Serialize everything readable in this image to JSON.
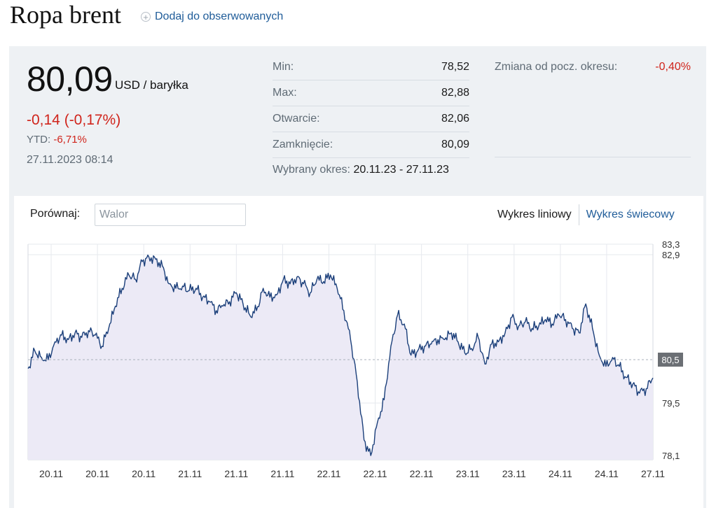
{
  "header": {
    "title": "Ropa brent",
    "watch_label": "Dodaj do obserwowanych"
  },
  "quote": {
    "price": "80,09",
    "unit": "USD / baryłka",
    "change": "-0,14 (-0,17%)",
    "ytd_label": "YTD:",
    "ytd_value": "-6,71%",
    "datetime": "27.11.2023 08:14"
  },
  "stats": {
    "rows": [
      {
        "label": "Min:",
        "value": "78,52"
      },
      {
        "label": "Max:",
        "value": "82,88"
      },
      {
        "label": "Otwarcie:",
        "value": "82,06"
      },
      {
        "label": "Zamknięcie:",
        "value": "80,09"
      }
    ],
    "period_change_label": "Zmiana od pocz. okresu:",
    "period_change_value": "-0,40%",
    "period_label": "Wybrany okres:",
    "period_value": "20.11.23 - 27.11.23"
  },
  "compare": {
    "label": "Porównaj:",
    "placeholder": "Walor"
  },
  "chart_tabs": {
    "line": "Wykres liniowy",
    "candle": "Wykres świecowy"
  },
  "colors": {
    "line": "#1b3f7a",
    "fill": "#eceaf6",
    "negative": "#d0241b",
    "link": "#1f5c99"
  },
  "chart_data": {
    "type": "area",
    "y_ticks": [
      83.3,
      82.9,
      79.5,
      78.1
    ],
    "y_tick_labels": [
      "83,3",
      "82,9",
      "79,5",
      "78,1"
    ],
    "ylim": [
      78.1,
      83.3
    ],
    "reference_value": 80.5,
    "reference_label": "80,5",
    "x_tick_labels": [
      "20.11",
      "20.11",
      "20.11",
      "21.11",
      "21.11",
      "21.11",
      "22.11",
      "22.11",
      "22.11",
      "23.11",
      "23.11",
      "24.11",
      "24.11",
      "27.11"
    ],
    "grid": true,
    "values": [
      80.3,
      80.7,
      80.55,
      80.5,
      80.9,
      81.05,
      80.95,
      81.1,
      81.0,
      81.15,
      81.05,
      80.8,
      81.2,
      81.7,
      82.1,
      82.4,
      82.3,
      82.7,
      82.8,
      82.75,
      82.6,
      82.2,
      82.1,
      82.15,
      82.05,
      82.1,
      81.9,
      81.8,
      81.6,
      81.7,
      81.8,
      82.0,
      81.75,
      81.5,
      81.6,
      82.1,
      81.9,
      81.95,
      82.3,
      82.2,
      82.35,
      82.2,
      82.0,
      82.3,
      82.25,
      82.4,
      82.1,
      81.6,
      80.95,
      80.0,
      78.7,
      78.35,
      79.1,
      79.6,
      80.8,
      81.5,
      81.3,
      80.6,
      80.7,
      80.8,
      80.85,
      80.95,
      80.95,
      81.1,
      80.9,
      80.65,
      80.75,
      81.0,
      80.4,
      80.85,
      80.9,
      81.1,
      81.45,
      81.25,
      81.35,
      81.2,
      81.25,
      81.4,
      81.3,
      81.5,
      81.4,
      81.2,
      81.1,
      81.75,
      81.2,
      80.6,
      80.35,
      80.55,
      80.35,
      80.1,
      79.95,
      79.75,
      79.85,
      80.09
    ]
  }
}
